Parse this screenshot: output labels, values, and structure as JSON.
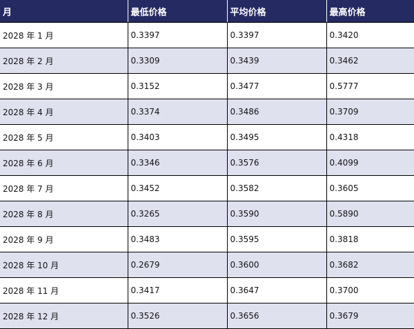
{
  "table": {
    "headers": [
      "月",
      "最低价格",
      "平均价格",
      "最高价格"
    ],
    "rows": [
      [
        "2028 年 1 月",
        "0.3397",
        "0.3397",
        "0.3420"
      ],
      [
        "2028 年 2 月",
        "0.3309",
        "0.3439",
        "0.3462"
      ],
      [
        "2028 年 3 月",
        "0.3152",
        "0.3477",
        "0.5777"
      ],
      [
        "2028 年 4 月",
        "0.3374",
        "0.3486",
        "0.3709"
      ],
      [
        "2028 年 5 月",
        "0.3403",
        "0.3495",
        "0.4318"
      ],
      [
        "2028 年 6 月",
        "0.3346",
        "0.3576",
        "0.4099"
      ],
      [
        "2028 年 7 月",
        "0.3452",
        "0.3582",
        "0.3605"
      ],
      [
        "2028 年 8 月",
        "0.3265",
        "0.3590",
        "0.5890"
      ],
      [
        "2028 年 9 月",
        "0.3483",
        "0.3595",
        "0.3818"
      ],
      [
        "2028 年 10 月",
        "0.2679",
        "0.3600",
        "0.3682"
      ],
      [
        "2028 年 11 月",
        "0.3417",
        "0.3647",
        "0.3700"
      ],
      [
        "2028 年 12 月",
        "0.3526",
        "0.3656",
        "0.3679"
      ]
    ]
  },
  "colors": {
    "header_bg": "#262a63",
    "alt_row_bg": "#e0e1ef"
  }
}
